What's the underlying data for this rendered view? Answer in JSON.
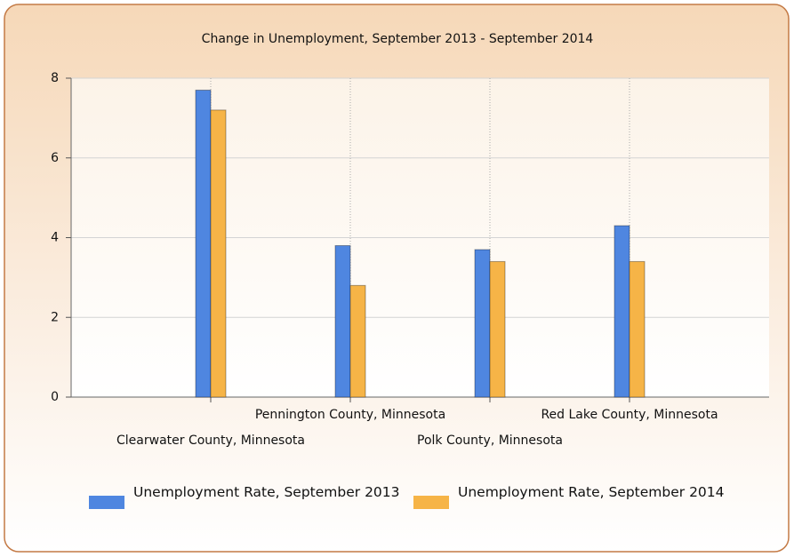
{
  "chart_data": {
    "type": "bar",
    "title": "Change in Unemployment, September 2013 - September 2014",
    "categories": [
      "Clearwater County, Minnesota",
      "Pennington County, Minnesota",
      "Polk County, Minnesota",
      "Red Lake County, Minnesota"
    ],
    "series": [
      {
        "name": "Unemployment Rate, September 2013",
        "color": "#4f86e0",
        "values": [
          7.7,
          3.8,
          3.7,
          4.3
        ]
      },
      {
        "name": "Unemployment Rate, September 2014",
        "color": "#f6b447",
        "values": [
          7.2,
          2.8,
          3.4,
          3.4
        ]
      }
    ],
    "ylim": [
      0,
      8
    ],
    "yticks": [
      0,
      2,
      4,
      6,
      8
    ],
    "grid": true
  }
}
